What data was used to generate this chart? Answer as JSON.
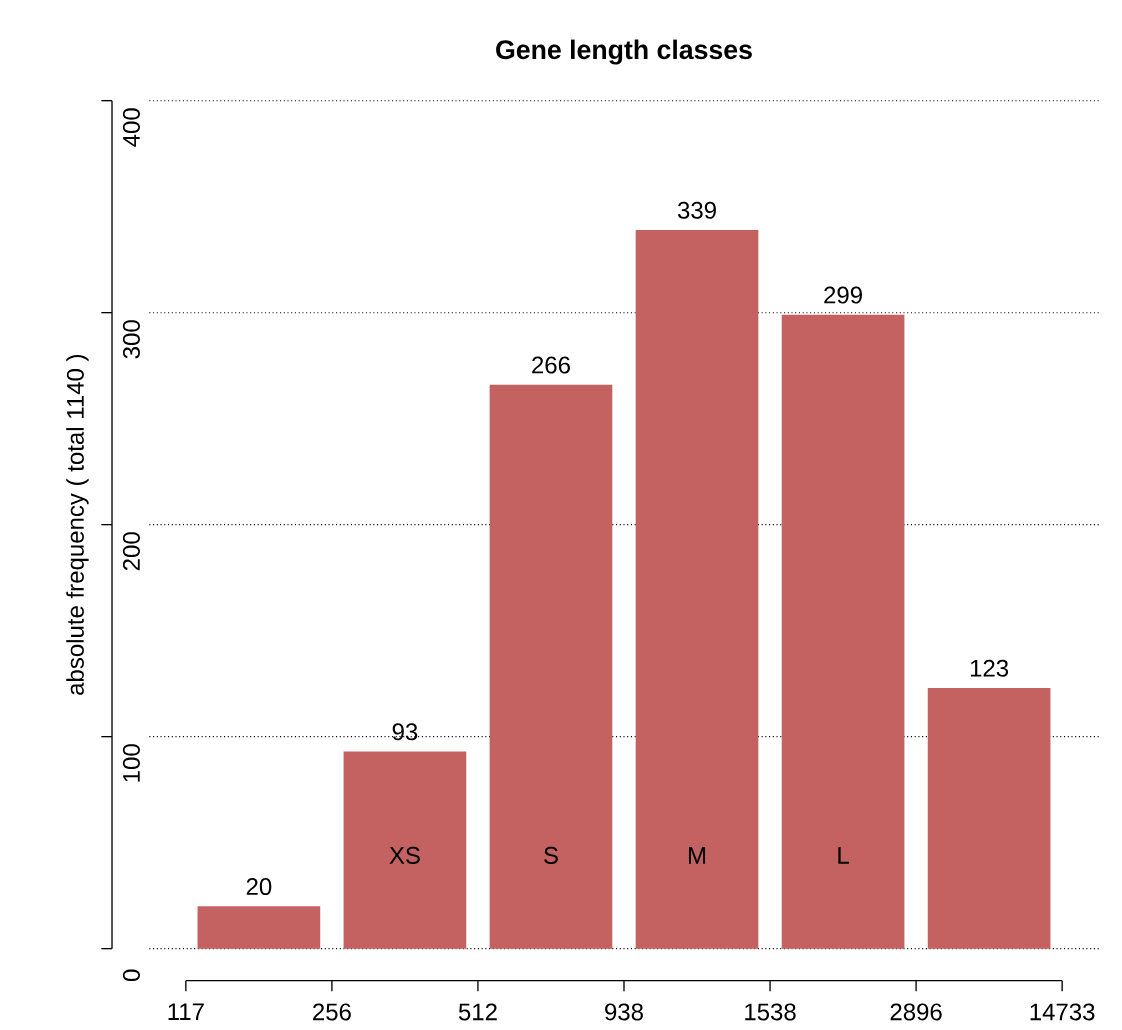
{
  "chart_data": {
    "type": "bar",
    "title": "Gene length classes",
    "ylabel": "absolute frequency ( total 1140 )",
    "categories": [
      null,
      "XS",
      "S",
      "M",
      "L",
      null
    ],
    "values": [
      20,
      93,
      266,
      339,
      299,
      123
    ],
    "color": "#c46262",
    "ylim": [
      0,
      400
    ],
    "yticks": [
      0,
      100,
      200,
      300,
      400
    ],
    "grid": "y",
    "data_labels": true,
    "annotations": [
      "117",
      "256",
      "512",
      "938",
      "1538",
      "2896",
      "14733"
    ]
  }
}
